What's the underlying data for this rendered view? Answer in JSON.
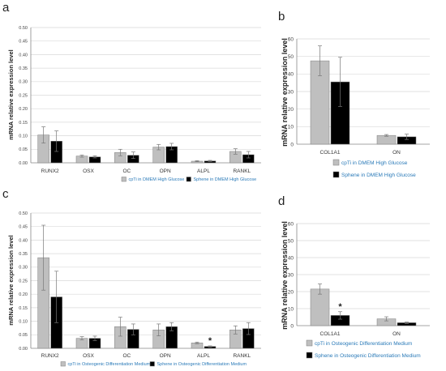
{
  "colors": {
    "grey_bar": "#bfbfbf",
    "black_bar": "#000000",
    "legend_text": "#2a7ab8",
    "grid": "#d9d9d9"
  },
  "chart_data": [
    {
      "panel": "a",
      "type": "bar",
      "ylabel": "mRNA relative expression level",
      "ylim": [
        0,
        0.5
      ],
      "yticks": [
        "0.00",
        "0.05",
        "0.10",
        "0.15",
        "0.20",
        "0.25",
        "0.30",
        "0.35",
        "0.40",
        "0.45",
        "0.50"
      ],
      "grid": true,
      "legend_position": "bottom",
      "categories": [
        "RUNX2",
        "OSX",
        "OC",
        "OPN",
        "ALPL",
        "RANKL"
      ],
      "series": [
        {
          "name": "cpTi in DMEM High Glucose",
          "color": "#bfbfbf",
          "values": [
            0.103,
            0.025,
            0.038,
            0.058,
            0.006,
            0.042
          ],
          "errors": [
            0.03,
            0.004,
            0.012,
            0.01,
            0.002,
            0.01
          ]
        },
        {
          "name": "Sphene in DMEM High Glucose",
          "color": "#000000",
          "values": [
            0.08,
            0.022,
            0.028,
            0.06,
            0.007,
            0.03
          ],
          "errors": [
            0.038,
            0.004,
            0.012,
            0.012,
            0.002,
            0.012
          ]
        }
      ],
      "annotations": []
    },
    {
      "panel": "b",
      "type": "bar",
      "ylabel": "mRNA relative expression level",
      "ylim": [
        0,
        60
      ],
      "yticks": [
        "0",
        "10",
        "20",
        "30",
        "40",
        "50",
        "60"
      ],
      "grid": true,
      "legend_position": "bottom",
      "categories": [
        "COL1A1",
        "ON"
      ],
      "series": [
        {
          "name": "cpTi in DMEM High Glucose",
          "color": "#bfbfbf",
          "values": [
            47.5,
            5.0
          ],
          "errors": [
            8.5,
            0.5
          ]
        },
        {
          "name": "Sphene in DMEM High Glucose",
          "color": "#000000",
          "values": [
            35.5,
            4.2
          ],
          "errors": [
            14.0,
            1.5
          ]
        }
      ],
      "annotations": []
    },
    {
      "panel": "c",
      "type": "bar",
      "ylabel": "mRNA relative expression level",
      "ylim": [
        0,
        0.5
      ],
      "yticks": [
        "0.00",
        "0.05",
        "0.10",
        "0.15",
        "0.20",
        "0.25",
        "0.30",
        "0.35",
        "0.40",
        "0.45",
        "0.50"
      ],
      "grid": true,
      "legend_position": "bottom",
      "categories": [
        "RUNX2",
        "OSX",
        "OC",
        "OPN",
        "ALPL",
        "RANKL"
      ],
      "series": [
        {
          "name": "cpTi in Osteogenic Differentiation Medium",
          "color": "#bfbfbf",
          "values": [
            0.335,
            0.037,
            0.08,
            0.068,
            0.02,
            0.068
          ],
          "errors": [
            0.12,
            0.006,
            0.035,
            0.022,
            0.003,
            0.015
          ]
        },
        {
          "name": "Sphene in Osteogenic Differentiation Medium",
          "color": "#000000",
          "values": [
            0.19,
            0.037,
            0.07,
            0.08,
            0.007,
            0.073
          ],
          "errors": [
            0.095,
            0.008,
            0.02,
            0.015,
            0.002,
            0.022
          ]
        }
      ],
      "annotations": [
        {
          "category": "ALPL",
          "text": "*"
        }
      ]
    },
    {
      "panel": "d",
      "type": "bar",
      "ylabel": "mRNA relative expression level",
      "ylim": [
        0,
        60
      ],
      "yticks": [
        "0",
        "10",
        "20",
        "30",
        "40",
        "50",
        "60"
      ],
      "grid": true,
      "legend_position": "bottom",
      "categories": [
        "COL1A1",
        "ON"
      ],
      "series": [
        {
          "name": "cpTi in Osteogenic Differentiation Medium",
          "color": "#bfbfbf",
          "values": [
            21.5,
            4.0
          ],
          "errors": [
            3.0,
            1.2
          ]
        },
        {
          "name": "Sphene in Osteogenic Differentiation Medium",
          "color": "#000000",
          "values": [
            6.0,
            1.7
          ],
          "errors": [
            2.2,
            0.4
          ]
        }
      ],
      "annotations": [
        {
          "category": "COL1A1",
          "text": "*"
        }
      ]
    }
  ]
}
